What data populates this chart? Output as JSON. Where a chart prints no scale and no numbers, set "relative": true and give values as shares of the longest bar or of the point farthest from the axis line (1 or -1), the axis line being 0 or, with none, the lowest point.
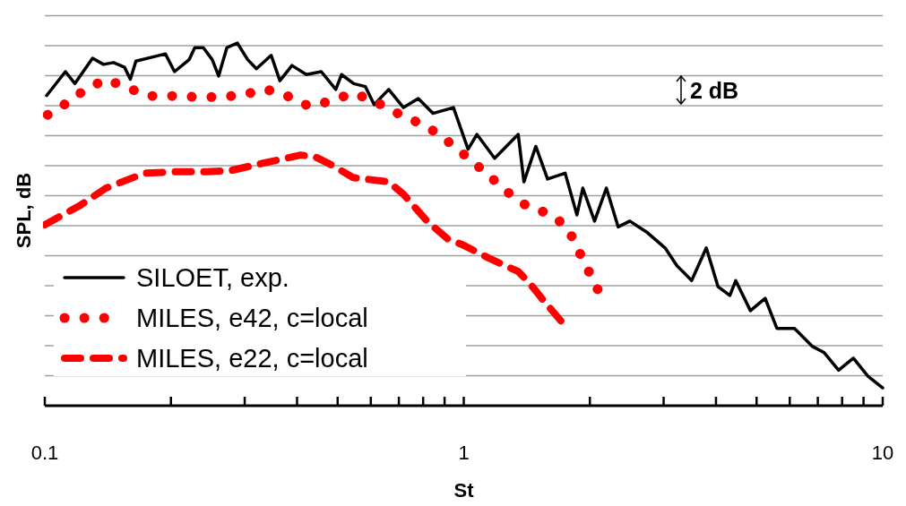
{
  "chart_data": {
    "type": "line",
    "xlabel": "St",
    "ylabel": "SPL, dB",
    "relative": true,
    "log": "x",
    "grid": "y",
    "legend": "bottom left",
    "marker": "none",
    "xlim": [
      0.1,
      10
    ],
    "xticks": [
      0.1,
      {
        "value": 0.2,
        "label": null
      },
      {
        "value": 0.3,
        "label": null
      },
      {
        "value": 0.4,
        "label": null
      },
      {
        "value": 0.5,
        "label": null
      },
      {
        "value": 0.6,
        "label": null
      },
      {
        "value": 0.7,
        "label": null
      },
      {
        "value": 0.8,
        "label": null
      },
      {
        "value": 0.9,
        "label": null
      },
      1,
      {
        "value": 2,
        "label": null
      },
      {
        "value": 3,
        "label": null
      },
      {
        "value": 4,
        "label": null
      },
      {
        "value": 5,
        "label": null
      },
      {
        "value": 6,
        "label": null
      },
      {
        "value": 7,
        "label": null
      },
      {
        "value": 8,
        "label": null
      },
      {
        "value": 9,
        "label": null
      },
      10
    ],
    "annotations": [
      "2 dB"
    ],
    "series": [
      {
        "name": "SILOET, exp.",
        "color": "#000000",
        "line_style": "solid",
        "x": [
          0.101,
          0.112,
          0.118,
          0.13,
          0.138,
          0.146,
          0.155,
          0.16,
          0.165,
          0.182,
          0.194,
          0.204,
          0.221,
          0.228,
          0.239,
          0.251,
          0.26,
          0.272,
          0.288,
          0.305,
          0.32,
          0.347,
          0.364,
          0.389,
          0.421,
          0.457,
          0.495,
          0.511,
          0.546,
          0.582,
          0.611,
          0.662,
          0.718,
          0.779,
          0.844,
          0.945,
          1.024,
          1.075,
          1.185,
          1.349,
          1.392,
          1.486,
          1.585,
          1.746,
          1.863,
          1.924,
          2.052,
          2.19,
          2.336,
          2.491,
          2.745,
          3.024,
          3.228,
          3.499,
          3.793,
          4.046,
          4.317,
          4.458,
          4.833,
          5.242,
          5.59,
          6.158,
          6.784,
          7.237,
          7.848,
          8.511,
          9.222,
          10
        ],
        "values": [
          0.855,
          0.921,
          0.888,
          0.958,
          0.941,
          0.946,
          0.933,
          0.9,
          0.95,
          0.962,
          0.97,
          0.921,
          0.954,
          0.987,
          0.987,
          0.954,
          0.909,
          0.987,
          1.0,
          0.954,
          0.929,
          0.966,
          0.896,
          0.938,
          0.913,
          0.921,
          0.872,
          0.913,
          0.888,
          0.88,
          0.83,
          0.872,
          0.822,
          0.847,
          0.806,
          0.822,
          0.707,
          0.748,
          0.682,
          0.748,
          0.617,
          0.715,
          0.625,
          0.641,
          0.526,
          0.6,
          0.509,
          0.6,
          0.493,
          0.509,
          0.477,
          0.435,
          0.386,
          0.345,
          0.435,
          0.328,
          0.304,
          0.345,
          0.262,
          0.296,
          0.213,
          0.213,
          0.164,
          0.147,
          0.098,
          0.131,
          0.081,
          0.049
        ]
      },
      {
        "name": "MILES, e42, c=local",
        "color": "#ff0000",
        "line_style": "dotted",
        "x": [
          0.1016,
          0.113,
          0.125,
          0.14,
          0.158,
          0.177,
          0.202,
          0.23,
          0.262,
          0.298,
          0.336,
          0.379,
          0.427,
          0.479,
          0.544,
          0.611,
          0.684,
          0.77,
          0.865,
          0.953,
          1.058,
          1.162,
          1.285,
          1.42,
          1.611,
          1.769,
          1.869,
          1.981,
          2.102
        ],
        "values": [
          0.802,
          0.835,
          0.872,
          0.9,
          0.876,
          0.854,
          0.854,
          0.851,
          0.851,
          0.857,
          0.873,
          0.854,
          0.826,
          0.839,
          0.862,
          0.84,
          0.81,
          0.783,
          0.752,
          0.713,
          0.67,
          0.629,
          0.585,
          0.549,
          0.528,
          0.491,
          0.433,
          0.374,
          0.314
        ]
      },
      {
        "name": "MILES, e22, c=local",
        "color": "#ff0000",
        "line_style": "dashed",
        "x": [
          0.1,
          0.121,
          0.14,
          0.173,
          0.204,
          0.243,
          0.277,
          0.336,
          0.408,
          0.442,
          0.487,
          0.544,
          0.662,
          0.718,
          0.817,
          0.915,
          0.992,
          1.147,
          1.349,
          1.438,
          1.535,
          1.705
        ],
        "values": [
          0.499,
          0.551,
          0.6,
          0.641,
          0.645,
          0.645,
          0.648,
          0.67,
          0.691,
          0.686,
          0.662,
          0.629,
          0.617,
          0.583,
          0.509,
          0.46,
          0.444,
          0.407,
          0.37,
          0.337,
          0.296,
          0.234
        ]
      }
    ]
  }
}
